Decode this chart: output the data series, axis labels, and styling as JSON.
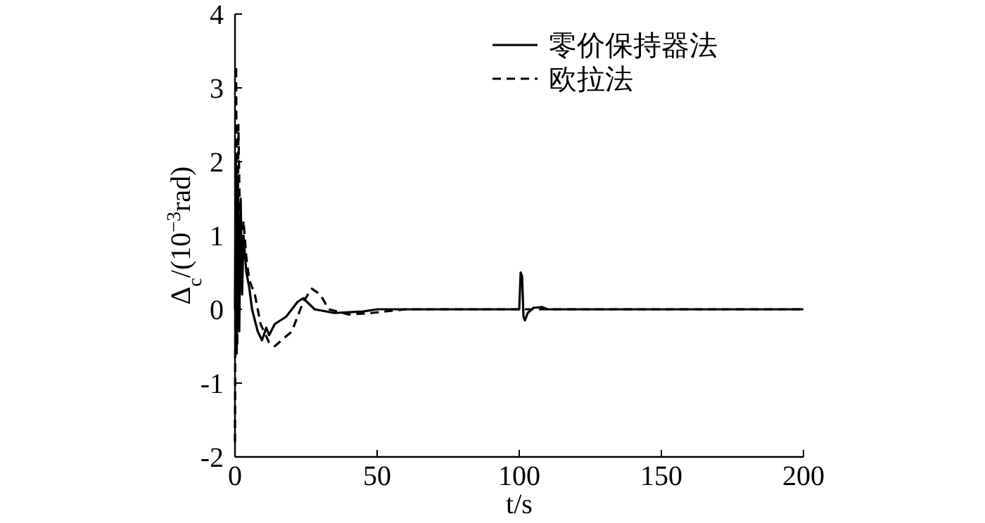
{
  "chart_data": {
    "type": "line",
    "xlabel": "t/s",
    "ylabel": "Δ$_{c}$/(10$^{−3}$rad)",
    "xlim": [
      0,
      200
    ],
    "ylim": [
      -2,
      4
    ],
    "xticks": [
      0,
      50,
      100,
      150,
      200
    ],
    "yticks": [
      -2,
      -1,
      0,
      1,
      2,
      3,
      4
    ],
    "legend": "top right",
    "series": [
      {
        "name": "零价保持器法",
        "color": "#000000",
        "line_style": "solid",
        "x": [
          0,
          0.3,
          0.6,
          1,
          1.5,
          2,
          2.5,
          3,
          4,
          5,
          6,
          8,
          9.5,
          11,
          12,
          14,
          18,
          22,
          24,
          28,
          35,
          45,
          50,
          100,
          100.5,
          101,
          101.5,
          102,
          103,
          105,
          108,
          110,
          200
        ],
        "values": [
          0,
          2.0,
          -0.6,
          1.8,
          -0.3,
          1.5,
          0.2,
          1.0,
          0.5,
          0.3,
          0.0,
          -0.3,
          -0.42,
          -0.25,
          -0.35,
          -0.2,
          -0.1,
          0.1,
          0.15,
          0.0,
          -0.05,
          -0.03,
          0,
          0,
          0.5,
          0.45,
          -0.1,
          -0.15,
          -0.05,
          0.02,
          0.03,
          0,
          0
        ]
      },
      {
        "name": "欧拉法",
        "color": "#000000",
        "line_style": "dashed",
        "x": [
          0,
          0.4,
          0.8,
          1.2,
          2,
          3,
          4,
          5,
          7,
          9,
          12,
          14,
          17,
          20,
          24,
          27,
          30,
          33,
          40,
          48,
          60,
          200
        ],
        "values": [
          -1.8,
          3.3,
          -0.5,
          2.5,
          0.5,
          1.2,
          0.7,
          0.4,
          0.2,
          -0.2,
          -0.45,
          -0.5,
          -0.4,
          -0.3,
          0.1,
          0.28,
          0.2,
          0.0,
          -0.07,
          -0.05,
          0,
          0
        ]
      }
    ]
  }
}
